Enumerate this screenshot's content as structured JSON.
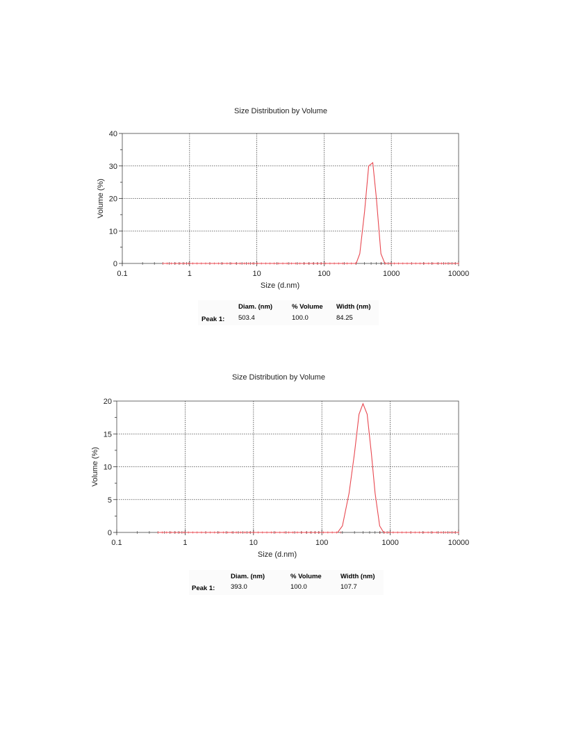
{
  "chart_data": [
    {
      "type": "line",
      "title": "Size Distribution by Volume",
      "xlabel": "Size (d.nm)",
      "ylabel": "Volume (%)",
      "xscale": "log",
      "xlim": [
        0.1,
        10000
      ],
      "ylim": [
        0,
        40
      ],
      "xticks": [
        0.1,
        1,
        10,
        100,
        1000,
        10000
      ],
      "xtick_labels": [
        "0.1",
        "1",
        "10",
        "100",
        "1000",
        "10000"
      ],
      "yticks": [
        0,
        10,
        20,
        30,
        40
      ],
      "ytick_labels": [
        "0",
        "10",
        "20",
        "30",
        "40"
      ],
      "grid": true,
      "line_color": "#e8474f",
      "x": [
        0.4,
        1,
        10,
        100,
        200,
        300,
        340,
        400,
        460,
        530,
        600,
        700,
        800,
        1000,
        10000
      ],
      "y": [
        0,
        0,
        0,
        0,
        0,
        0,
        3,
        16,
        30,
        31,
        20,
        3,
        0,
        0,
        0
      ],
      "peak_table": {
        "headers": [
          "Diam. (nm)",
          "% Volume",
          "Width (nm)"
        ],
        "rows": [
          {
            "label": "Peak 1:",
            "values": [
              "503.4",
              "100.0",
              "84.25"
            ]
          }
        ]
      }
    },
    {
      "type": "line",
      "title": "Size Distribution by Volume",
      "xlabel": "Size (d.nm)",
      "ylabel": "Volume (%)",
      "xscale": "log",
      "xlim": [
        0.1,
        10000
      ],
      "ylim": [
        0,
        20
      ],
      "xticks": [
        0.1,
        1,
        10,
        100,
        1000,
        10000
      ],
      "xtick_labels": [
        "0.1",
        "1",
        "10",
        "100",
        "1000",
        "10000"
      ],
      "yticks": [
        0,
        5,
        10,
        15,
        20
      ],
      "ytick_labels": [
        "0",
        "5",
        "10",
        "15",
        "20"
      ],
      "grid": true,
      "line_color": "#e8474f",
      "x": [
        0.4,
        1,
        10,
        100,
        170,
        200,
        250,
        300,
        350,
        400,
        460,
        530,
        600,
        700,
        800,
        1000,
        10000
      ],
      "y": [
        0,
        0,
        0,
        0,
        0,
        1,
        6,
        12,
        18,
        19.6,
        18,
        12,
        6,
        1,
        0,
        0,
        0
      ],
      "peak_table": {
        "headers": [
          "Diam. (nm)",
          "% Volume",
          "Width (nm)"
        ],
        "rows": [
          {
            "label": "Peak 1:",
            "values": [
              "393.0",
              "100.0",
              "107.7"
            ]
          }
        ]
      }
    }
  ]
}
